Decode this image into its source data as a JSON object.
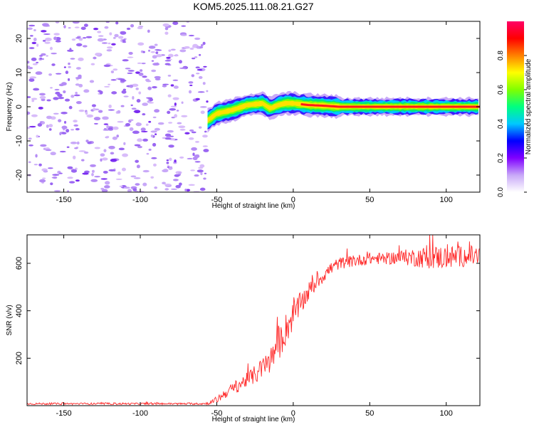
{
  "title": "KOM5.2025.111.08.21.G27",
  "chart_data": [
    {
      "type": "heatmap",
      "xlabel": "Height of straight line (km)",
      "ylabel": "Frequency (Hz)",
      "xlim": [
        -174,
        122
      ],
      "ylim": [
        -25,
        25
      ],
      "xticks": [
        -150,
        -100,
        -50,
        0,
        50,
        100
      ],
      "yticks": [
        -20,
        -10,
        0,
        10,
        20
      ],
      "signal_start_km": -56,
      "signal_track": [
        {
          "x": -56,
          "y": -4
        },
        {
          "x": -50,
          "y": -2
        },
        {
          "x": -40,
          "y": -1
        },
        {
          "x": -30,
          "y": 0.5
        },
        {
          "x": -20,
          "y": 1
        },
        {
          "x": -15,
          "y": -0.5
        },
        {
          "x": -10,
          "y": 0.5
        },
        {
          "x": -5,
          "y": 1
        },
        {
          "x": 0,
          "y": 1
        },
        {
          "x": 10,
          "y": 0.5
        },
        {
          "x": 20,
          "y": 0.3
        },
        {
          "x": 30,
          "y": 0
        },
        {
          "x": 50,
          "y": 0
        },
        {
          "x": 75,
          "y": 0
        },
        {
          "x": 100,
          "y": 0
        },
        {
          "x": 122,
          "y": 0
        }
      ],
      "colorbar": {
        "label": "Normalized spectral amplitude",
        "range": [
          0,
          1
        ],
        "ticks": [
          "0.0",
          "0.2",
          "0.4",
          "0.6",
          "0.8"
        ],
        "colors": [
          "#ffffff",
          "#c8a8f8",
          "#8000ff",
          "#0000ff",
          "#00c8ff",
          "#00ff80",
          "#80ff00",
          "#ffff00",
          "#ff8000",
          "#ff0000",
          "#ff0066"
        ]
      }
    },
    {
      "type": "line",
      "xlabel": "Height of straight line (km)",
      "ylabel": "SNR (v/v)",
      "xlim": [
        -174,
        122
      ],
      "ylim": [
        0,
        720
      ],
      "xticks": [
        -150,
        -100,
        -50,
        0,
        50,
        100
      ],
      "yticks": [
        200,
        400,
        600
      ],
      "color": "#ff2a2a",
      "series": [
        {
          "x": [
            -174,
            -150,
            -100,
            -60,
            -55,
            -50,
            -45,
            -40,
            -35,
            -30,
            -25,
            -20,
            -15,
            -10,
            -5,
            0,
            5,
            10,
            15,
            20,
            25,
            30,
            40,
            50,
            60,
            70,
            80,
            90,
            100,
            110,
            122
          ],
          "values": [
            8,
            8,
            8,
            8,
            10,
            25,
            50,
            70,
            90,
            110,
            130,
            160,
            190,
            250,
            320,
            380,
            430,
            480,
            520,
            550,
            580,
            600,
            610,
            620,
            620,
            625,
            625,
            625,
            625,
            630,
            630
          ],
          "noise": [
            4,
            4,
            4,
            4,
            6,
            15,
            20,
            25,
            30,
            30,
            40,
            45,
            55,
            70,
            70,
            60,
            50,
            40,
            35,
            30,
            30,
            25,
            25,
            25,
            25,
            30,
            40,
            50,
            50,
            45,
            45
          ]
        }
      ]
    }
  ]
}
